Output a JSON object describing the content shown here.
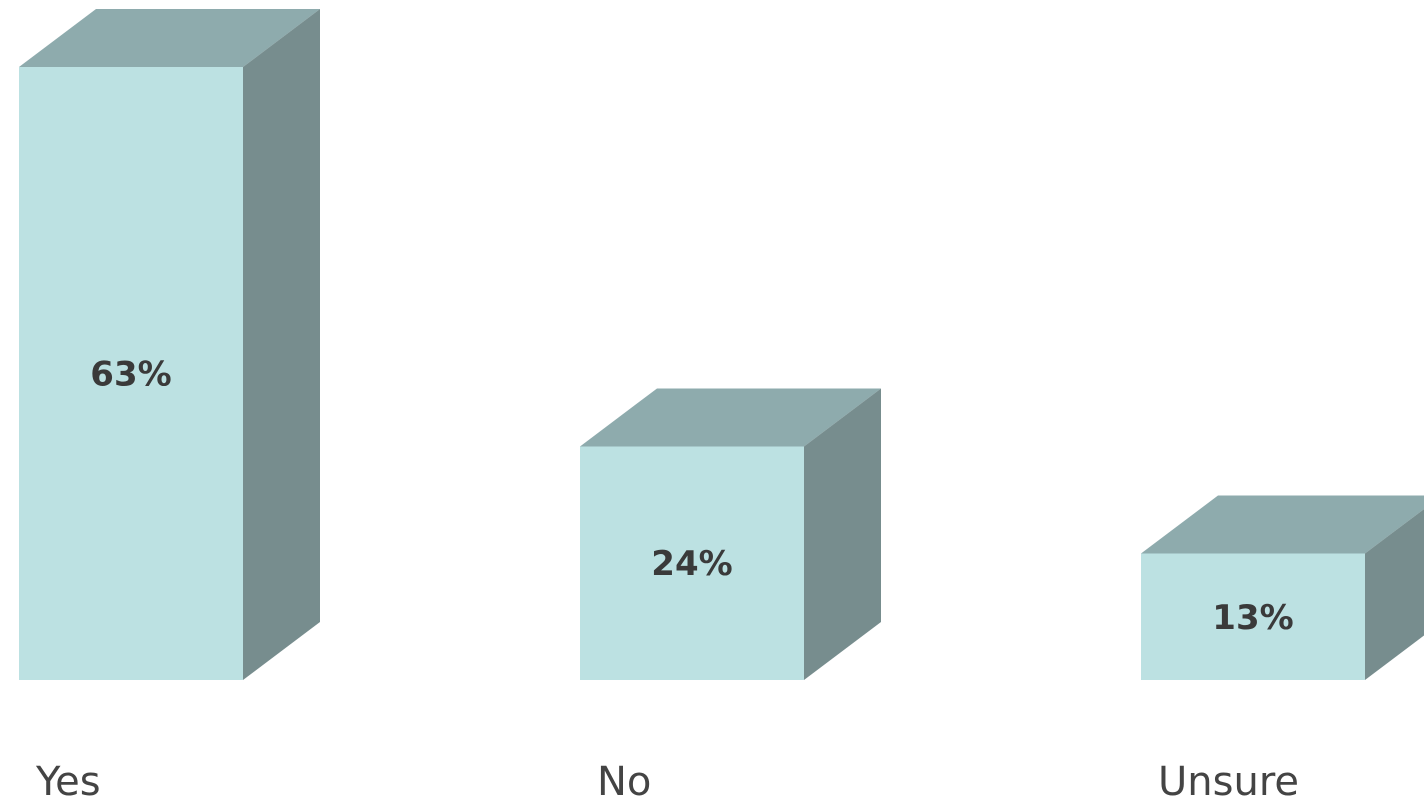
{
  "chart_data": {
    "type": "bar",
    "style": "3d",
    "categories": [
      "Yes",
      "No",
      "Unsure"
    ],
    "values": [
      63,
      24,
      13
    ],
    "data_labels": [
      "63%",
      "24%",
      "13%"
    ],
    "title": "",
    "xlabel": "",
    "ylabel": "",
    "ylim": [
      0,
      63
    ],
    "grid": false,
    "legend": "none",
    "colors": {
      "front": "#bce1e2",
      "top": "#8eabad",
      "side": "#778d8e",
      "label": "#3a3a3a",
      "category": "#444444"
    }
  }
}
